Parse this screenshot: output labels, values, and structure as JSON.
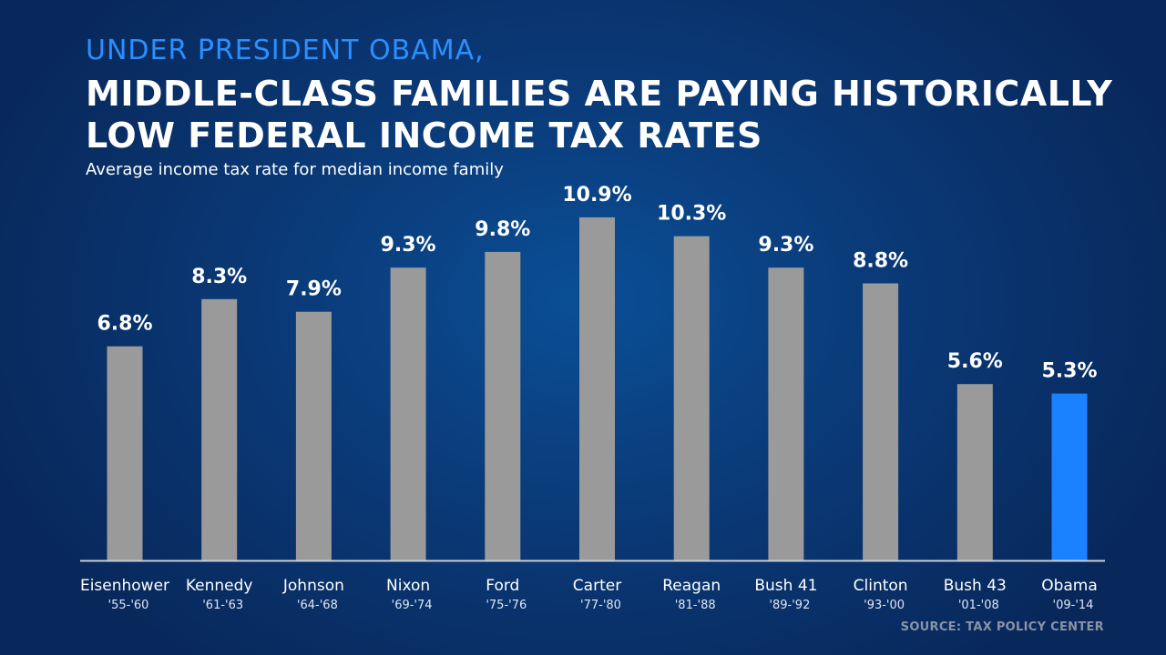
{
  "kicker": "UNDER PRESIDENT OBAMA,",
  "headline_line1": "MIDDLE-CLASS FAMILIES ARE PAYING HISTORICALLY",
  "headline_line2": "LOW FEDERAL INCOME TAX RATES",
  "source": "SOURCE: TAX POLICY CENTER",
  "colors": {
    "bar_default": "#9a9a9a",
    "bar_highlight": "#1a82ff",
    "baseline": "#c8ccd4",
    "text": "#ffffff"
  },
  "chart_data": {
    "type": "bar",
    "subtitle": "Average income tax rate for median income family",
    "categories": [
      "Eisenhower",
      "Kennedy",
      "Johnson",
      "Nixon",
      "Ford",
      "Carter",
      "Reagan",
      "Bush 41",
      "Clinton",
      "Bush 43",
      "Obama"
    ],
    "periods": [
      "'55-'60",
      "'61-'63",
      "'64-'68",
      "'69-'74",
      "'75-'76",
      "'77-'80",
      "'81-'88",
      "'89-'92",
      "'93-'00",
      "'01-'08",
      "'09-'14"
    ],
    "values": [
      6.8,
      8.3,
      7.9,
      9.3,
      9.8,
      10.9,
      10.3,
      9.3,
      8.8,
      5.6,
      5.3
    ],
    "value_labels": [
      "6.8%",
      "8.3%",
      "7.9%",
      "9.3%",
      "9.8%",
      "10.9%",
      "10.3%",
      "9.3%",
      "8.8%",
      "5.6%",
      "5.3%"
    ],
    "highlight_index": 10,
    "ylim": [
      0,
      11
    ],
    "grid": false,
    "legend": "none"
  }
}
